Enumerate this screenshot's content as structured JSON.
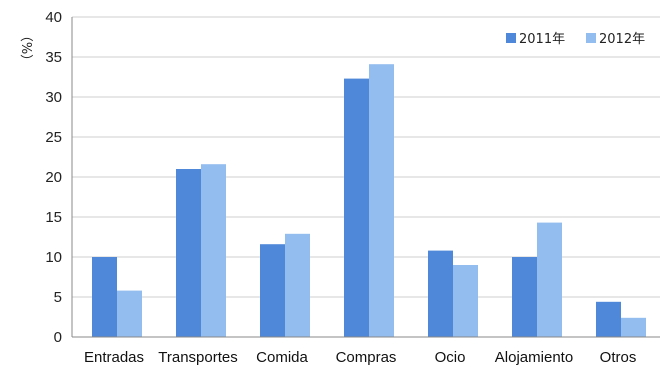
{
  "chart_data": {
    "type": "bar",
    "title": "",
    "xlabel": "",
    "ylabel": "（%）",
    "ylim": [
      0,
      40
    ],
    "yticks": [
      0,
      5,
      10,
      15,
      20,
      25,
      30,
      35,
      40
    ],
    "grid": true,
    "legend_position": "top-right",
    "categories": [
      "Entradas",
      "Transportes",
      "Comida",
      "Compras",
      "Ocio",
      "Alojamiento",
      "Otros"
    ],
    "series": [
      {
        "name": "2011年",
        "color": "#4f88d8",
        "values": [
          10.0,
          21.0,
          11.6,
          32.3,
          10.8,
          10.0,
          4.4
        ]
      },
      {
        "name": "2012年",
        "color": "#93bdee",
        "values": [
          5.8,
          21.6,
          12.9,
          34.1,
          9.0,
          14.3,
          2.4
        ]
      }
    ]
  }
}
